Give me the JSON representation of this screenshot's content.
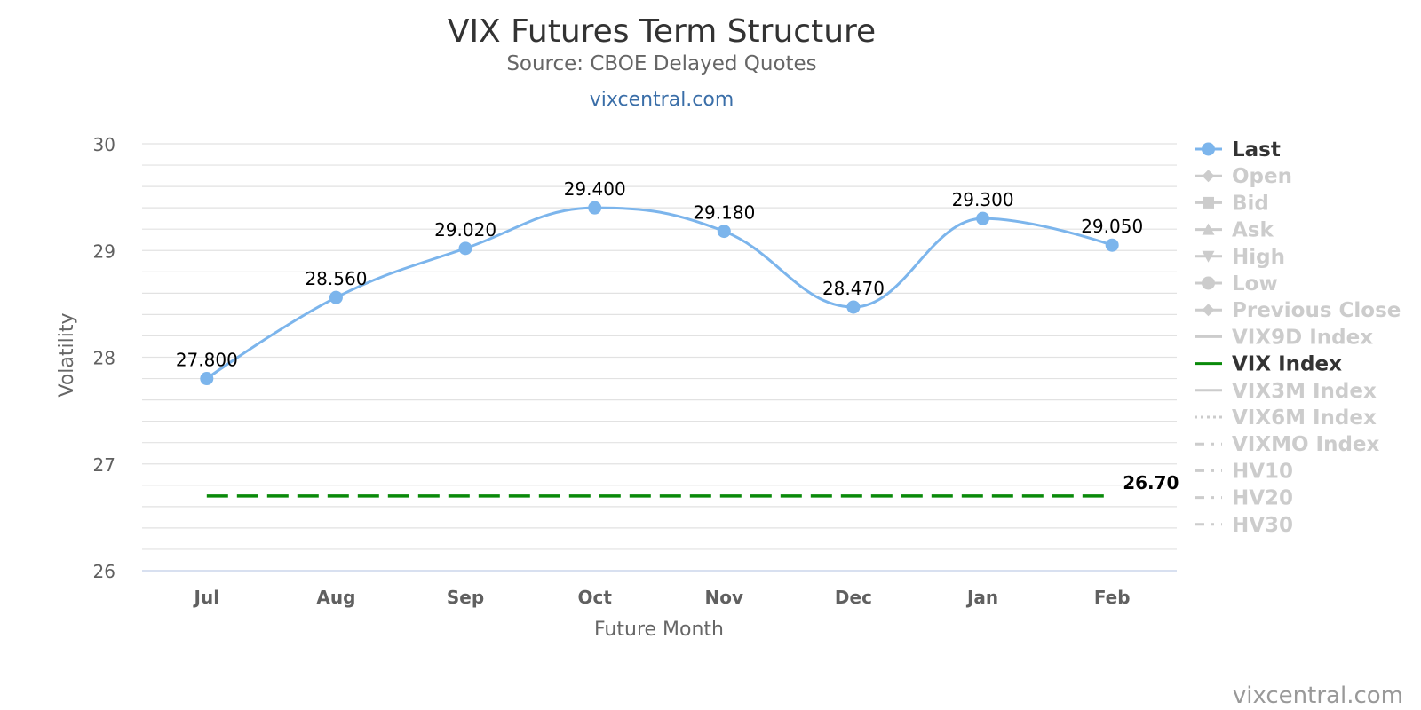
{
  "chart_data": {
    "type": "line",
    "title": "VIX Futures Term Structure",
    "subtitle": "Source: CBOE Delayed Quotes",
    "link_text": "vixcentral.com",
    "credit": "vixcentral.com",
    "xlabel": "Future Month",
    "ylabel": "Volatility",
    "ylim": [
      26,
      30
    ],
    "yticks": [
      26,
      27,
      28,
      29,
      30
    ],
    "categories": [
      "Jul",
      "Aug",
      "Sep",
      "Oct",
      "Nov",
      "Dec",
      "Jan",
      "Feb"
    ],
    "grid": true,
    "legend_position": "right",
    "series": [
      {
        "name": "Last",
        "values": [
          27.8,
          28.56,
          29.02,
          29.4,
          29.18,
          28.47,
          29.3,
          29.05
        ],
        "labels": [
          "27.800",
          "28.560",
          "29.020",
          "29.400",
          "29.180",
          "28.470",
          "29.300",
          "29.050"
        ],
        "color": "#7cb5ec",
        "visible": true
      },
      {
        "name": "VIX Index",
        "values": [
          26.7,
          26.7,
          26.7,
          26.7,
          26.7,
          26.7,
          26.7,
          26.7
        ],
        "end_label": "26.70",
        "color": "#0a8a0a",
        "visible": true
      }
    ],
    "legend": [
      {
        "name": "Last",
        "symbol": "circle-line",
        "active": true
      },
      {
        "name": "Open",
        "symbol": "diamond-line",
        "active": false
      },
      {
        "name": "Bid",
        "symbol": "square-line",
        "active": false
      },
      {
        "name": "Ask",
        "symbol": "triangle-line",
        "active": false
      },
      {
        "name": "High",
        "symbol": "triangle-down-line",
        "active": false
      },
      {
        "name": "Low",
        "symbol": "circle-line",
        "active": false
      },
      {
        "name": "Previous Close",
        "symbol": "diamond-line",
        "active": false
      },
      {
        "name": "VIX9D Index",
        "symbol": "solid-line",
        "active": false
      },
      {
        "name": "VIX Index",
        "symbol": "solid-line",
        "active": true
      },
      {
        "name": "VIX3M Index",
        "symbol": "solid-line",
        "active": false
      },
      {
        "name": "VIX6M Index",
        "symbol": "dotted-line",
        "active": false
      },
      {
        "name": "VIXMO Index",
        "symbol": "dashdot-line",
        "active": false
      },
      {
        "name": "HV10",
        "symbol": "dashdot-line",
        "active": false
      },
      {
        "name": "HV20",
        "symbol": "dashdot-line",
        "active": false
      },
      {
        "name": "HV30",
        "symbol": "dashdot-line",
        "active": false
      }
    ],
    "colors": {
      "active_legend": "#333333",
      "inactive_legend": "#cccccc",
      "gridline": "#e6e6e6"
    }
  }
}
